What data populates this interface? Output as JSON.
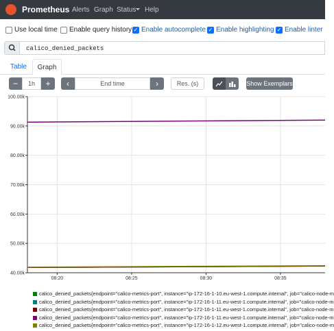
{
  "navbar": {
    "brand": "Prometheus",
    "links": [
      "Alerts",
      "Graph",
      "Status",
      "Help"
    ]
  },
  "options": [
    {
      "label": "Use local time",
      "checked": false
    },
    {
      "label": "Enable query history",
      "checked": false
    },
    {
      "label": "Enable autocomplete",
      "checked": true
    },
    {
      "label": "Enable highlighting",
      "checked": true
    },
    {
      "label": "Enable linter",
      "checked": true
    }
  ],
  "query": "calico_denied_packets",
  "tabs": [
    "Table",
    "Graph"
  ],
  "active_tab": 1,
  "controls": {
    "range": "1h",
    "end_time": "End time",
    "resolution": "Res. (s)",
    "exemplars": "Show Exemplars"
  },
  "chart_data": {
    "type": "line",
    "x": [
      "08:18",
      "08:38"
    ],
    "xlim": [
      "08:18",
      "08:38"
    ],
    "xticks": [
      "08:20",
      "08:25",
      "08:30",
      "08:35"
    ],
    "ylim": [
      40000,
      100000
    ],
    "yticks": [
      {
        "value": 40000,
        "label": "40.00k"
      },
      {
        "value": 50000,
        "label": "50.00k"
      },
      {
        "value": 60000,
        "label": "60.00k"
      },
      {
        "value": 70000,
        "label": "70.00k"
      },
      {
        "value": 80000,
        "label": "80.00k"
      },
      {
        "value": 90000,
        "label": "90.00k"
      },
      {
        "value": 100000,
        "label": "100.00k"
      }
    ],
    "grid": true,
    "series": [
      {
        "name": "calico_denied_packets{endpoint=\"calico-metrics-port\", instance=\"ip-172-16-1-10.eu-west-1.compute.internal\", job=\"calico-node-m",
        "color": "#008000",
        "values": [
          41800,
          42300
        ]
      },
      {
        "name": "calico_denied_packets{endpoint=\"calico-metrics-port\", instance=\"ip-172-16-1-11.eu-west-1.compute.internal\", job=\"calico-node-m",
        "color": "#008080",
        "values": [
          41800,
          42300
        ]
      },
      {
        "name": "calico_denied_packets{endpoint=\"calico-metrics-port\", instance=\"ip-172-16-1-11.eu-west-1.compute.internal\", job=\"calico-node-m",
        "color": "#800000",
        "values": [
          41800,
          42300
        ]
      },
      {
        "name": "calico_denied_packets{endpoint=\"calico-metrics-port\", instance=\"ip-172-16-1-11.eu-west-1.compute.internal\", job=\"calico-node-m",
        "color": "#800080",
        "values": [
          91300,
          92000
        ]
      },
      {
        "name": "calico_denied_packets{endpoint=\"calico-metrics-port\", instance=\"ip-172-16-1-12.eu-west-1.compute.internal\", job=\"calico-node-m",
        "color": "#808000",
        "values": [
          41900,
          42400
        ]
      }
    ]
  }
}
